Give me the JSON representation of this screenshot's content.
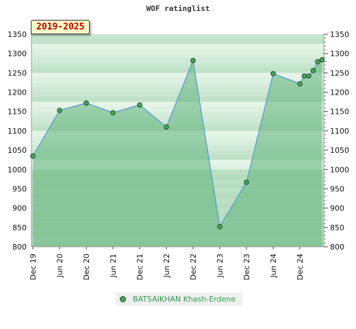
{
  "chart_data": {
    "type": "area",
    "title": "WOF ratinglist",
    "period_label": "2019-2025",
    "ylim": [
      800,
      1350
    ],
    "y_ticks": [
      800,
      850,
      900,
      950,
      1000,
      1050,
      1100,
      1150,
      1200,
      1250,
      1300,
      1350
    ],
    "x_tick_labels": [
      "Dec 19",
      "Jun 20",
      "Dec 20",
      "Jun 21",
      "Dec 21",
      "Jun 22",
      "Dec 22",
      "Jun 23",
      "Dec 23",
      "Jun 24",
      "Dec 24"
    ],
    "series": [
      {
        "name": "BATSAIKHAN Khash-Erdene",
        "color": "#49a35f",
        "line_color": "#5b9bd5",
        "points": [
          {
            "x": "Dec 19",
            "y": 1035
          },
          {
            "x": "Jun 20",
            "y": 1153
          },
          {
            "x": "Dec 20",
            "y": 1172
          },
          {
            "x": "Jun 21",
            "y": 1147
          },
          {
            "x": "Dec 21",
            "y": 1167
          },
          {
            "x": "Jun 22",
            "y": 1110
          },
          {
            "x": "Dec 22",
            "y": 1282
          },
          {
            "x": "Jun 23",
            "y": 852
          },
          {
            "x": "Dec 23",
            "y": 967
          },
          {
            "x": "Jun 24",
            "y": 1248
          },
          {
            "x": "Dec 24",
            "y": 1222
          },
          {
            "x": "Jan 25",
            "y": 1242
          },
          {
            "x": "Feb 25",
            "y": 1242
          },
          {
            "x": "Mar 25",
            "y": 1256
          },
          {
            "x": "Apr 25",
            "y": 1279
          },
          {
            "x": "May 25",
            "y": 1284
          }
        ]
      }
    ],
    "legend_position": "bottom",
    "grid": true
  }
}
